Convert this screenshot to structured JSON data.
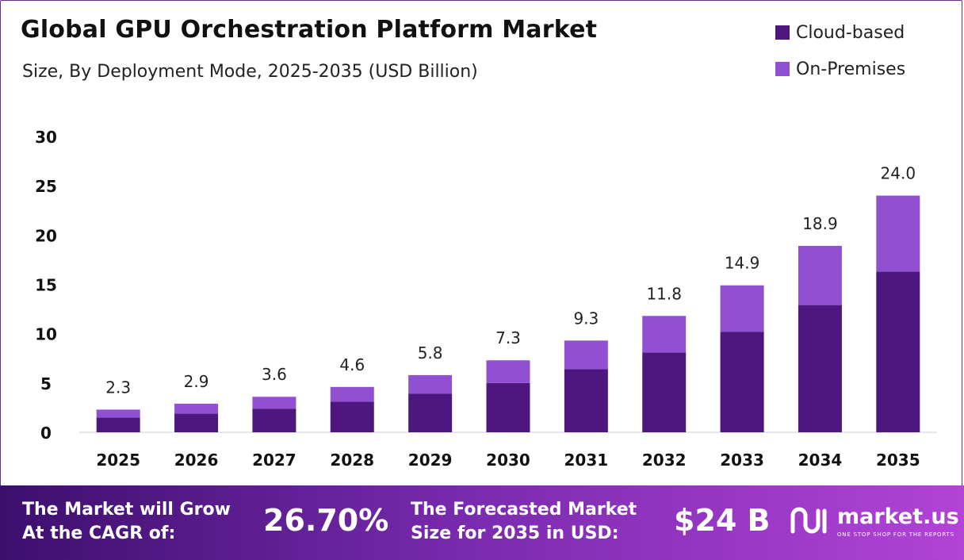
{
  "chart_data": {
    "type": "bar",
    "stacked": true,
    "title": "Global GPU Orchestration Platform Market",
    "subtitle": "Size, By Deployment Mode, 2025-2035 (USD Billion)",
    "categories": [
      "2025",
      "2026",
      "2027",
      "2028",
      "2029",
      "2030",
      "2031",
      "2032",
      "2033",
      "2034",
      "2035"
    ],
    "series": [
      {
        "name": "Cloud-based",
        "color": "#4e1780",
        "values": [
          1.5,
          1.9,
          2.4,
          3.1,
          3.9,
          5.0,
          6.4,
          8.1,
          10.2,
          12.9,
          16.3
        ]
      },
      {
        "name": "On-Premises",
        "color": "#9150d2",
        "values": [
          0.8,
          1.0,
          1.2,
          1.5,
          1.9,
          2.3,
          2.9,
          3.7,
          4.7,
          6.0,
          7.7
        ]
      }
    ],
    "totals": [
      "2.3",
      "2.9",
      "3.6",
      "4.6",
      "5.8",
      "7.3",
      "9.3",
      "11.8",
      "14.9",
      "18.9",
      "24.0"
    ],
    "yticks": [
      0,
      5,
      10,
      15,
      20,
      25,
      30
    ],
    "ylim": [
      0,
      30
    ],
    "grid": false,
    "legend_position": "top-right"
  },
  "footer": {
    "cagr_label_line1": "The Market will Grow",
    "cagr_label_line2": "At the CAGR of:",
    "cagr_value": "26.70%",
    "forecast_label_line1": "The Forecasted Market",
    "forecast_label_line2": "Size for 2035 in USD:",
    "forecast_value": "$24 B",
    "brand_name": "market.us",
    "brand_tagline": "ONE STOP SHOP FOR THE REPORTS"
  }
}
